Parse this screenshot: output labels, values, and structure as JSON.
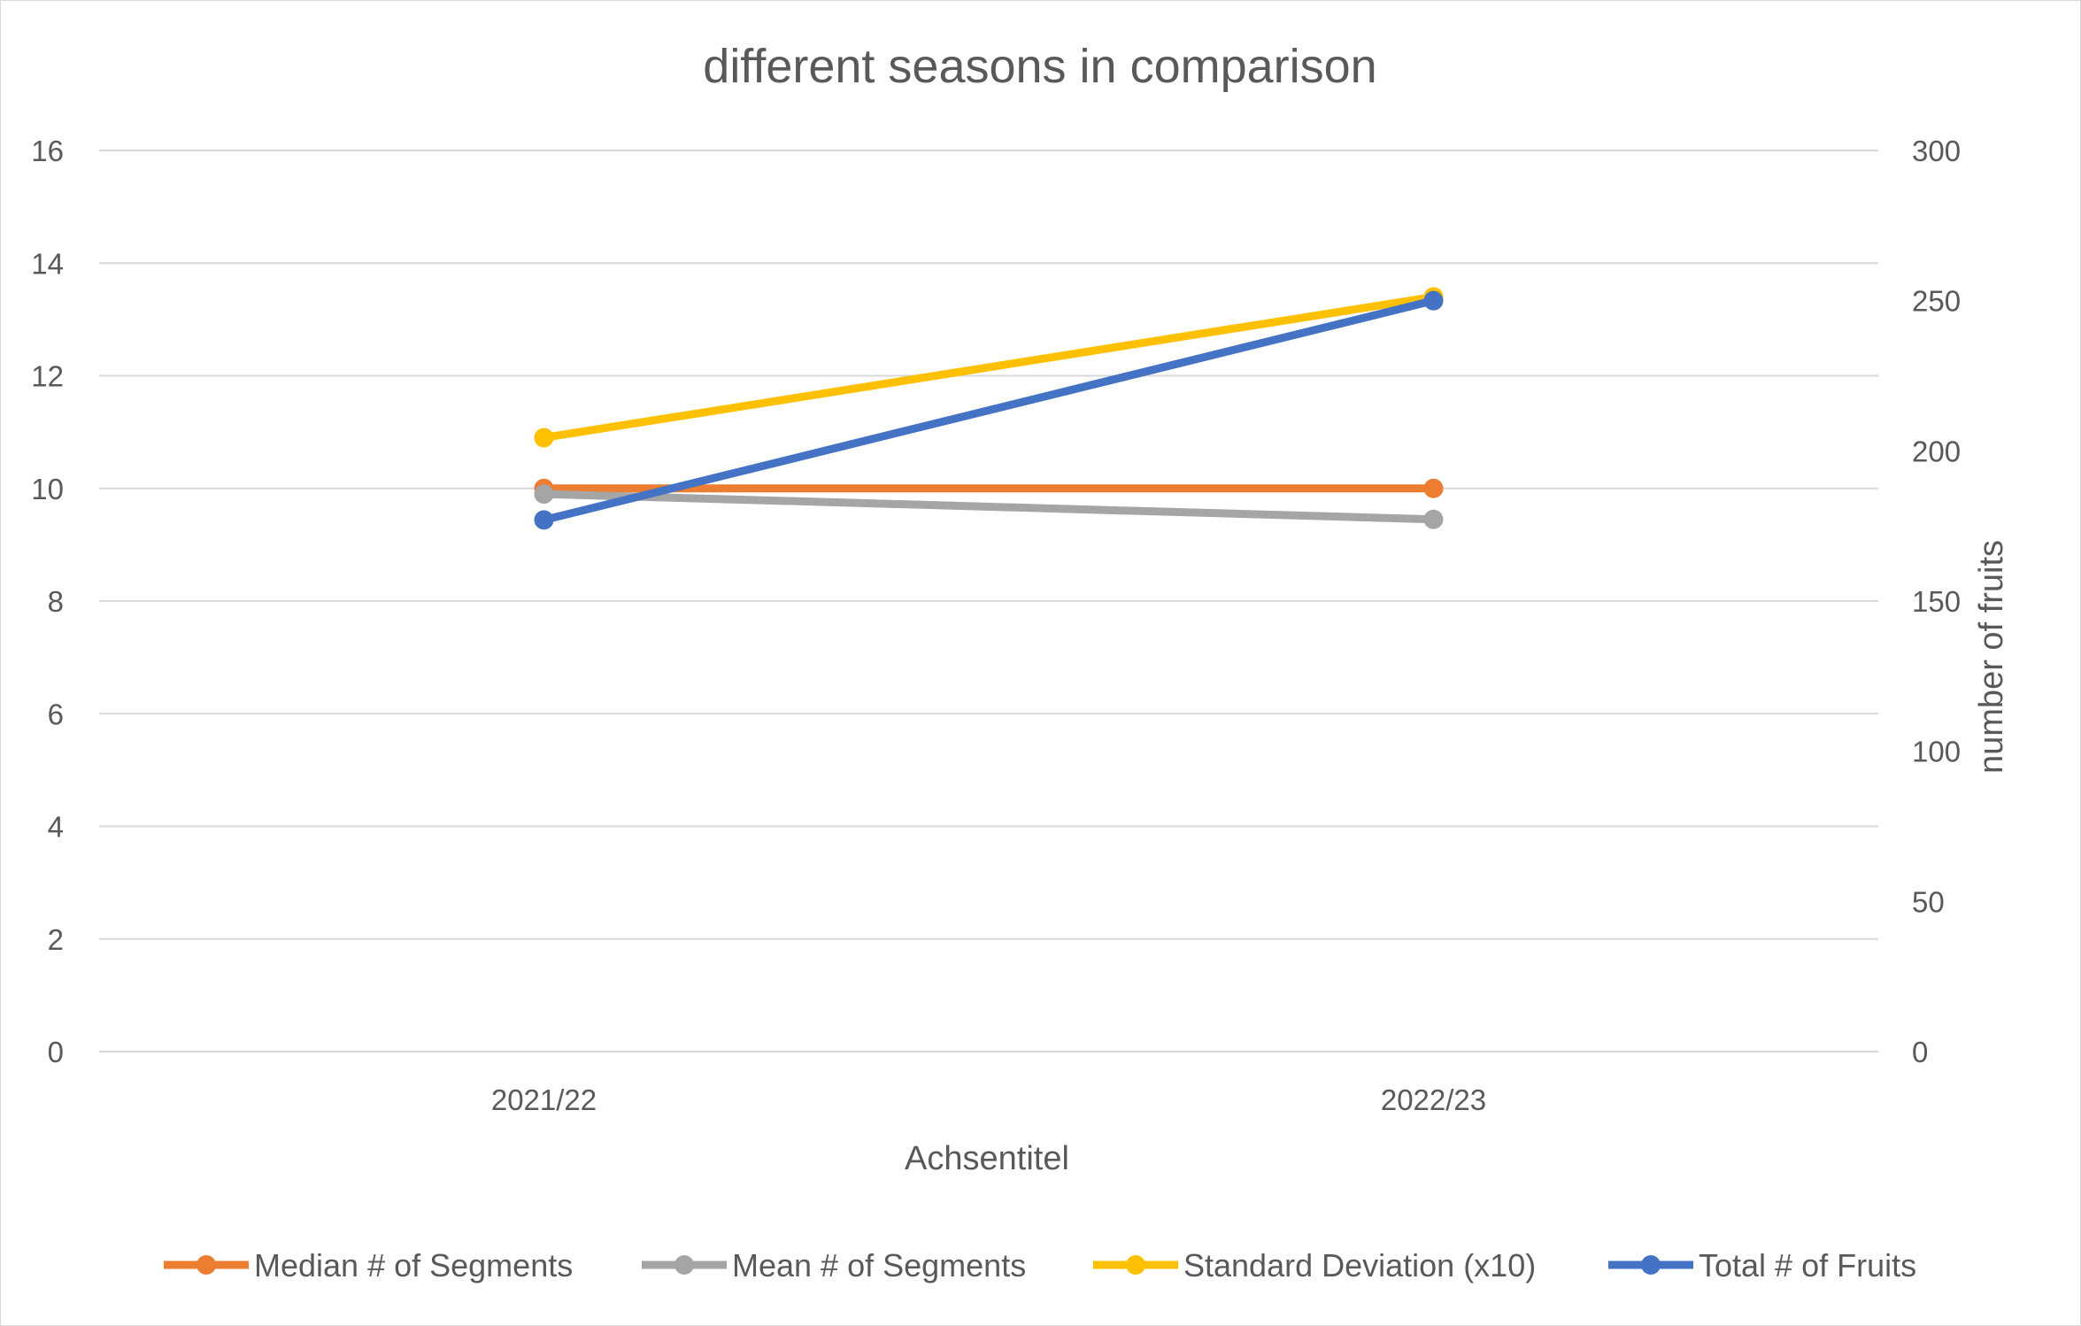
{
  "chart_data": {
    "type": "line",
    "title": "different seasons in comparison",
    "xlabel": "Achsentitel",
    "ylabel": "",
    "y2label": "number of fruits",
    "categories": [
      "2021/22",
      "2022/23"
    ],
    "ylim": [
      0,
      16
    ],
    "y_ticks": [
      0,
      2,
      4,
      6,
      8,
      10,
      12,
      14,
      16
    ],
    "y2lim": [
      0,
      300
    ],
    "y2_ticks": [
      0,
      50,
      100,
      150,
      200,
      250,
      300
    ],
    "grid": true,
    "legend_position": "bottom",
    "series": [
      {
        "name": "Median # of Segments",
        "values": [
          10,
          10
        ],
        "axis": "left",
        "color": "#ED7D31"
      },
      {
        "name": "Mean # of Segments",
        "values": [
          9.9,
          9.45
        ],
        "axis": "left",
        "color": "#A5A5A5"
      },
      {
        "name": "Standard Deviation (x10)",
        "values": [
          10.9,
          13.4
        ],
        "axis": "left",
        "color": "#FFC000"
      },
      {
        "name": "Total # of Fruits",
        "values": [
          177,
          250
        ],
        "axis": "right",
        "color": "#4472C4"
      }
    ]
  }
}
